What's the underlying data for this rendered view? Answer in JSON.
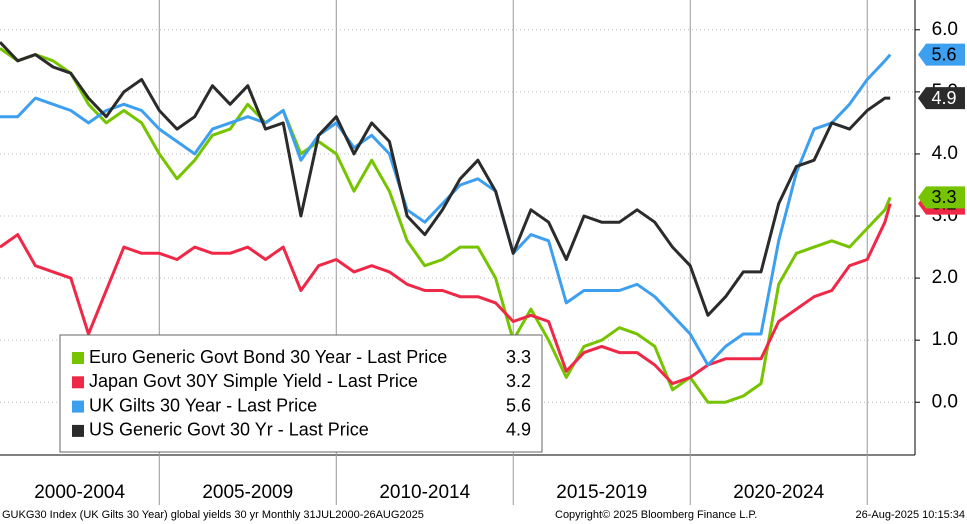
{
  "chart_data": {
    "type": "line",
    "x": [
      2000.5,
      2001,
      2001.5,
      2002,
      2002.5,
      2003,
      2003.5,
      2004,
      2004.5,
      2005,
      2005.5,
      2006,
      2006.5,
      2007,
      2007.5,
      2008,
      2008.5,
      2009,
      2009.5,
      2010,
      2010.5,
      2011,
      2011.5,
      2012,
      2012.5,
      2013,
      2013.5,
      2014,
      2014.5,
      2015,
      2015.5,
      2016,
      2016.5,
      2017,
      2017.5,
      2018,
      2018.5,
      2019,
      2019.5,
      2020,
      2020.5,
      2021,
      2021.5,
      2022,
      2022.5,
      2023,
      2023.5,
      2024,
      2024.5,
      2025,
      2025.5,
      2025.65
    ],
    "series": [
      {
        "name": "Euro Generic Govt Bond 30 Year - Last Price",
        "color": "#76c400",
        "values": [
          5.7,
          5.5,
          5.6,
          5.5,
          5.3,
          4.8,
          4.5,
          4.7,
          4.5,
          4.0,
          3.6,
          3.9,
          4.3,
          4.4,
          4.8,
          4.5,
          4.7,
          4.0,
          4.2,
          4.0,
          3.4,
          3.9,
          3.4,
          2.6,
          2.2,
          2.3,
          2.5,
          2.5,
          2.0,
          1.0,
          1.5,
          1.0,
          0.4,
          0.9,
          1.0,
          1.2,
          1.1,
          0.9,
          0.2,
          0.4,
          0.0,
          0.0,
          0.1,
          0.3,
          1.9,
          2.4,
          2.5,
          2.6,
          2.5,
          2.8,
          3.1,
          3.3
        ]
      },
      {
        "name": "Japan Govt 30Y Simple Yield - Last Price",
        "color": "#f02848",
        "values": [
          2.5,
          2.7,
          2.2,
          2.1,
          2.0,
          1.1,
          1.8,
          2.5,
          2.4,
          2.4,
          2.3,
          2.5,
          2.4,
          2.4,
          2.5,
          2.3,
          2.5,
          1.8,
          2.2,
          2.3,
          2.1,
          2.2,
          2.1,
          1.9,
          1.8,
          1.8,
          1.7,
          1.7,
          1.6,
          1.3,
          1.4,
          1.3,
          0.5,
          0.8,
          0.9,
          0.8,
          0.8,
          0.6,
          0.3,
          0.4,
          0.6,
          0.7,
          0.7,
          0.7,
          1.3,
          1.5,
          1.7,
          1.8,
          2.2,
          2.3,
          2.9,
          3.2
        ]
      },
      {
        "name": "UK Gilts 30 Year - Last Price",
        "color": "#3d9ff0",
        "values": [
          4.6,
          4.6,
          4.9,
          4.8,
          4.7,
          4.5,
          4.7,
          4.8,
          4.7,
          4.4,
          4.2,
          4.0,
          4.4,
          4.5,
          4.6,
          4.5,
          4.7,
          3.9,
          4.3,
          4.5,
          4.1,
          4.3,
          4.0,
          3.1,
          2.9,
          3.2,
          3.5,
          3.6,
          3.4,
          2.4,
          2.7,
          2.6,
          1.6,
          1.8,
          1.8,
          1.8,
          1.9,
          1.7,
          1.4,
          1.1,
          0.6,
          0.9,
          1.1,
          1.1,
          2.6,
          3.7,
          4.4,
          4.5,
          4.8,
          5.2,
          5.5,
          5.6
        ]
      },
      {
        "name": "US Generic Govt 30 Yr - Last Price",
        "color": "#2b2b2b",
        "values": [
          5.8,
          5.5,
          5.6,
          5.4,
          5.3,
          4.9,
          4.6,
          5.0,
          5.2,
          4.7,
          4.4,
          4.6,
          5.1,
          4.8,
          5.1,
          4.4,
          4.5,
          3.0,
          4.3,
          4.6,
          4.0,
          4.5,
          4.2,
          3.0,
          2.7,
          3.1,
          3.6,
          3.9,
          3.4,
          2.4,
          3.1,
          2.9,
          2.3,
          3.0,
          2.9,
          2.9,
          3.1,
          2.9,
          2.5,
          2.2,
          1.4,
          1.7,
          2.1,
          2.1,
          3.2,
          3.8,
          3.9,
          4.5,
          4.4,
          4.7,
          4.9,
          4.9
        ]
      }
    ],
    "xlim": [
      2000.5,
      2026.35
    ],
    "xticks": [
      2005,
      2010,
      2015,
      2020,
      2025
    ],
    "period_labels": [
      "2000-2004",
      "2005-2009",
      "2010-2014",
      "2015-2019",
      "2020-2024"
    ],
    "ylim": [
      -0.85,
      6.48
    ],
    "yticks": [
      {
        "value": 0,
        "label": "0.0"
      },
      {
        "value": 1,
        "label": "1.0"
      },
      {
        "value": 2,
        "label": "2.0"
      },
      {
        "value": 3,
        "label": "3.0"
      },
      {
        "value": 4,
        "label": "4.0"
      },
      {
        "value": 5,
        "label": "5.0"
      },
      {
        "value": 6,
        "label": "6.0"
      }
    ],
    "grid": true,
    "legend": "bottom-left",
    "footer": [
      "GUKG30 Index (UK Gilts 30 Year) global yields 30 yr  Monthly 31JUL2000-26AUG2025",
      "Copyright© 2025 Bloomberg Finance L.P.",
      "26-Aug-2025 10:15:34"
    ]
  }
}
